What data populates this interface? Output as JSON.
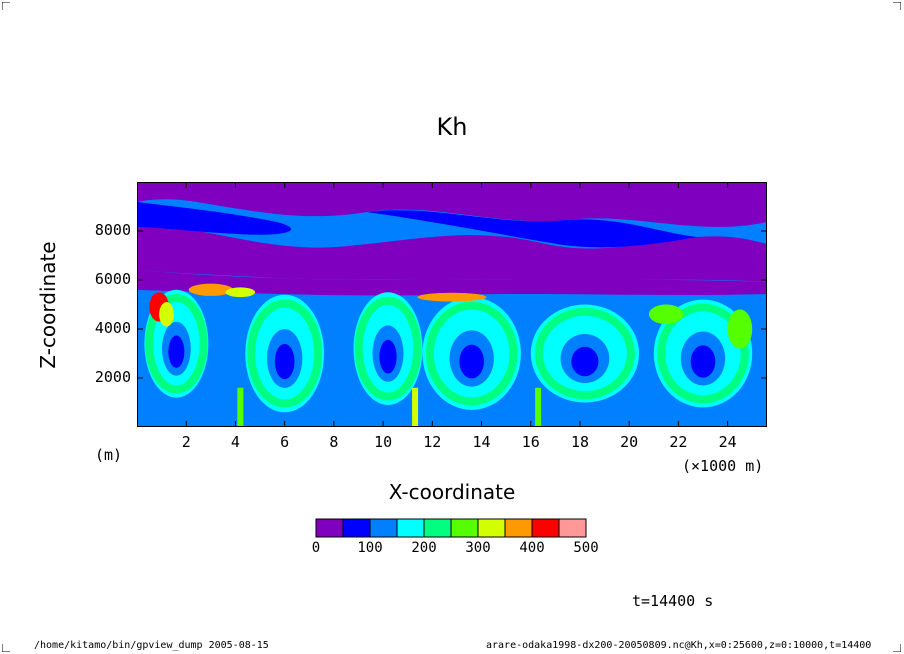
{
  "chart_data": {
    "type": "heatmap",
    "title": "Kh",
    "xlabel": "X-coordinate",
    "ylabel": "Z-coordinate",
    "x_unit": "(×1000 m)",
    "y_unit": "(m)",
    "xlim": [
      0,
      25.6
    ],
    "ylim": [
      0,
      10000
    ],
    "x_ticks": [
      2,
      4,
      6,
      8,
      10,
      12,
      14,
      16,
      18,
      20,
      22,
      24
    ],
    "y_ticks": [
      2000,
      4000,
      6000,
      8000
    ],
    "colorbar": {
      "ticks": [
        0,
        100,
        200,
        300,
        400,
        500
      ],
      "levels": [
        0,
        50,
        100,
        150,
        200,
        250,
        300,
        350,
        400,
        450,
        500
      ],
      "colors": [
        "#7f00bf",
        "#0000ff",
        "#0080ff",
        "#00ffff",
        "#00ff80",
        "#55ff00",
        "#d4ff00",
        "#ff9900",
        "#ff0000",
        "#ff9999"
      ]
    },
    "time_label": "t=14400 s",
    "footer_left": "/home/kitamo/bin/gpview_dump 2005-08-15",
    "footer_right": "arare-odaka1998-dx200-20050809.nc@Kh,x=0:25600,z=0:10000,t=14400"
  },
  "colors": {
    "purple": "#7f00bf",
    "blue": "#0000ff",
    "lightblue": "#0080ff",
    "cyan": "#00ffff",
    "green": "#00ff80",
    "lime": "#55ff00",
    "yellow": "#d4ff00",
    "orange": "#ff9900",
    "red": "#ff0000",
    "pink": "#ff9999"
  }
}
